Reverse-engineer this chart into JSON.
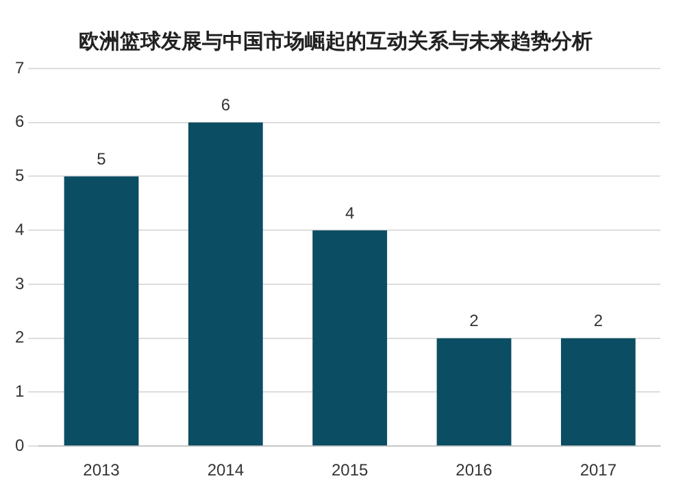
{
  "chart_data": {
    "type": "bar",
    "title": "欧洲篮球发展与中国市场崛起的互动关系与未来趋势分析",
    "categories": [
      "2013",
      "2014",
      "2015",
      "2016",
      "2017"
    ],
    "values": [
      5,
      6,
      4,
      2,
      2
    ],
    "color": "#0b4d63",
    "ylim": [
      0,
      7
    ],
    "yticks": [
      0,
      1,
      2,
      3,
      4,
      5,
      6,
      7
    ],
    "grid": "y",
    "data_labels": true
  }
}
